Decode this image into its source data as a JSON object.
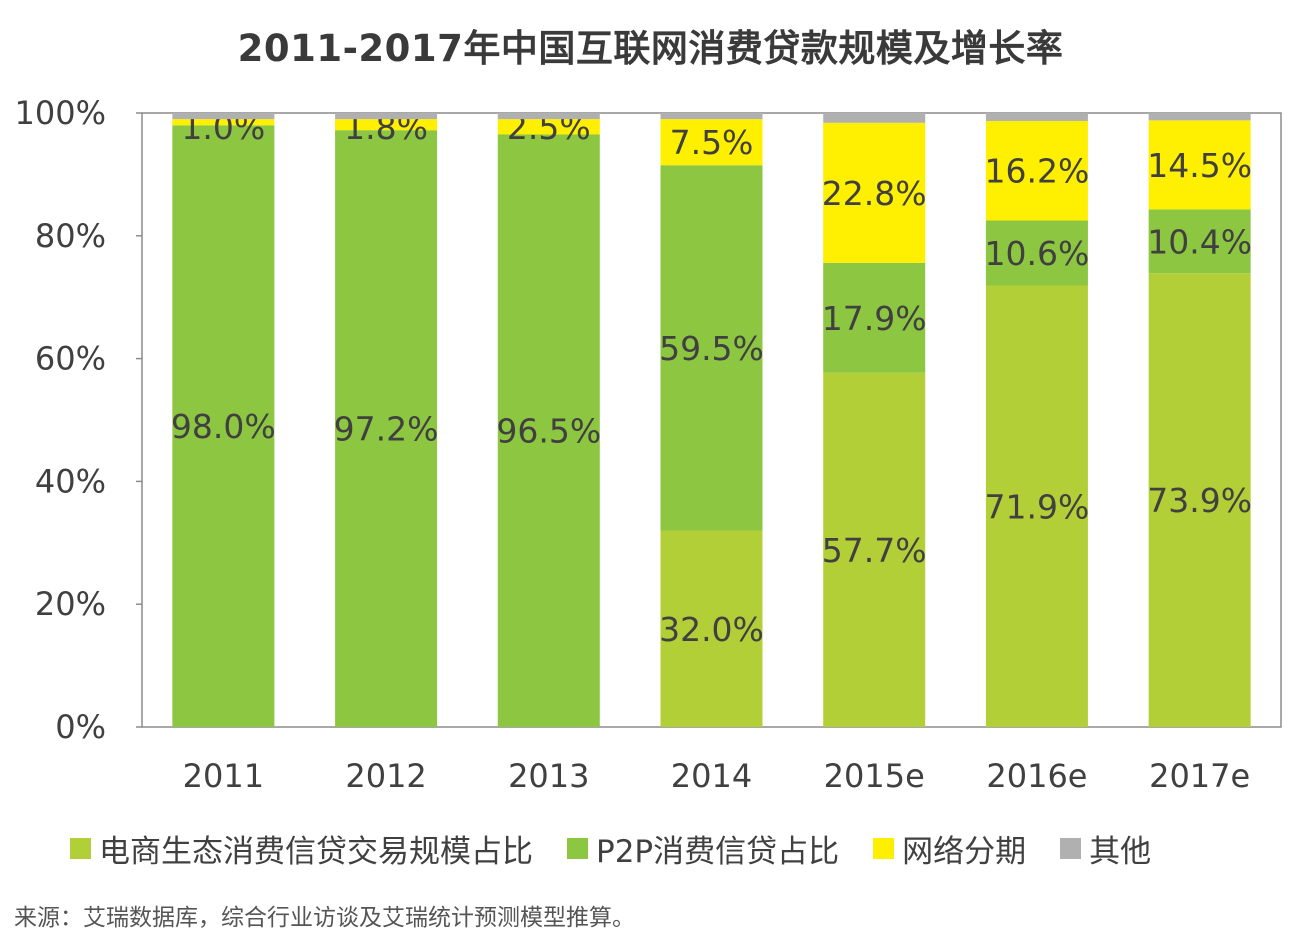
{
  "title": "2011-2017年中国互联网消费贷款规模及增长率",
  "source": "来源：艾瑞数据库，综合行业访谈及艾瑞统计预测模型推算。",
  "chart_data": {
    "type": "bar",
    "stacked": true,
    "percent_stacked": true,
    "title": "2011-2017年中国互联网消费贷款规模及增长率",
    "xlabel": "",
    "ylabel": "",
    "ylim": [
      0,
      100
    ],
    "yticks": [
      "0%",
      "20%",
      "40%",
      "60%",
      "80%",
      "100%"
    ],
    "categories": [
      "2011",
      "2012",
      "2013",
      "2014",
      "2015e",
      "2016e",
      "2017e"
    ],
    "legend_position": "bottom",
    "grid": false,
    "series": [
      {
        "name": "电商生态消费信贷交易规模占比",
        "color": "#b3cf38",
        "values": [
          0,
          0,
          0,
          32.0,
          57.7,
          71.9,
          73.9
        ],
        "labels": [
          "",
          "",
          "",
          "32.0%",
          "57.7%",
          "71.9%",
          "73.9%"
        ]
      },
      {
        "name": "P2P消费信贷占比",
        "color": "#8dc640",
        "values": [
          98.0,
          97.2,
          96.5,
          59.5,
          17.9,
          10.6,
          10.4
        ],
        "labels": [
          "98.0%",
          "97.2%",
          "96.5%",
          "59.5%",
          "17.9%",
          "10.6%",
          "10.4%"
        ]
      },
      {
        "name": "网络分期",
        "color": "#ffef00",
        "values": [
          1.0,
          1.8,
          2.5,
          7.5,
          22.8,
          16.2,
          14.5
        ],
        "labels": [
          "1.0%",
          "1.8%",
          "2.5%",
          "7.5%",
          "22.8%",
          "16.2%",
          "14.5%"
        ]
      },
      {
        "name": "其他",
        "color": "#b0b0b0",
        "values": [
          1.0,
          1.0,
          1.0,
          1.0,
          1.6,
          1.3,
          1.2
        ],
        "labels": [
          "",
          "",
          "",
          "",
          "",
          "",
          ""
        ]
      }
    ]
  }
}
